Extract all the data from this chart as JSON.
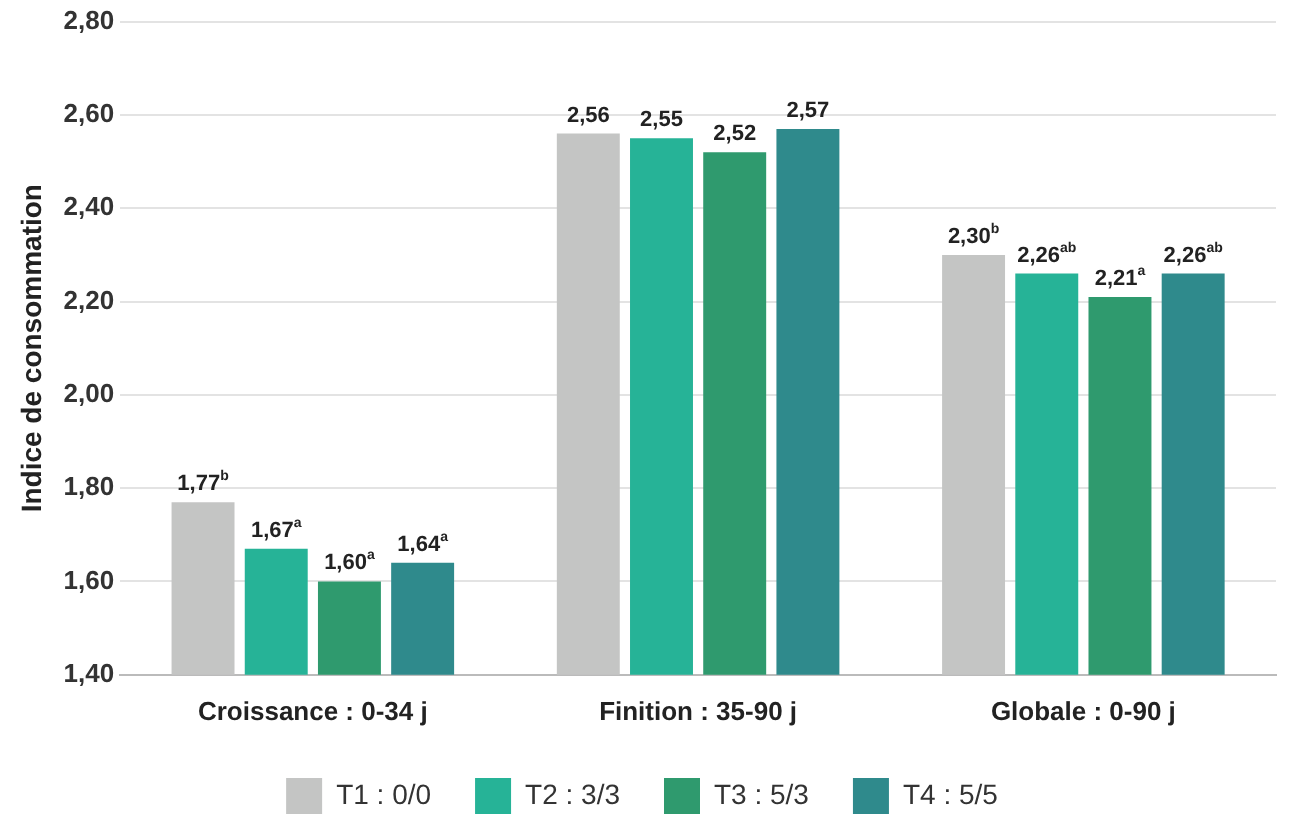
{
  "chart_data": {
    "type": "bar",
    "ylabel": "Indice de consommation",
    "categories": [
      "Croissance : 0-34 j",
      "Finition : 35-90 j",
      "Globale : 0-90 j"
    ],
    "series": [
      {
        "name": "T1 : 0/0",
        "color": "#c4c5c4",
        "values": [
          1.77,
          2.56,
          2.3
        ],
        "value_labels": [
          "1,77$^{b}$",
          "2,56",
          "2,30$^{b}$"
        ]
      },
      {
        "name": "T2 : 3/3",
        "color": "#26b397",
        "values": [
          1.67,
          2.55,
          2.26
        ],
        "value_labels": [
          "1,67$^{a}$",
          "2,55",
          "2,26$^{ab}$"
        ]
      },
      {
        "name": "T3 : 5/3",
        "color": "#2f9a6e",
        "values": [
          1.6,
          2.52,
          2.21
        ],
        "value_labels": [
          "1,60$^{a}$",
          "2,52",
          "2,21$^{a}$"
        ]
      },
      {
        "name": "T4 : 5/5",
        "color": "#2f8a8c",
        "values": [
          1.64,
          2.57,
          2.26
        ],
        "value_labels": [
          "1,64$^{a}$",
          "2,57",
          "2,26$^{ab}$"
        ]
      }
    ],
    "ylim": [
      1.4,
      2.8
    ],
    "yticks": [
      {
        "value": 1.4,
        "label": "1,40"
      },
      {
        "value": 1.6,
        "label": "1,60"
      },
      {
        "value": 1.8,
        "label": "1,80"
      },
      {
        "value": 2.0,
        "label": "2,00"
      },
      {
        "value": 2.2,
        "label": "2,20"
      },
      {
        "value": 2.4,
        "label": "2,40"
      },
      {
        "value": 2.6,
        "label": "2,60"
      },
      {
        "value": 2.8,
        "label": "2,80"
      }
    ],
    "grid": "y",
    "legend": "bottom"
  }
}
